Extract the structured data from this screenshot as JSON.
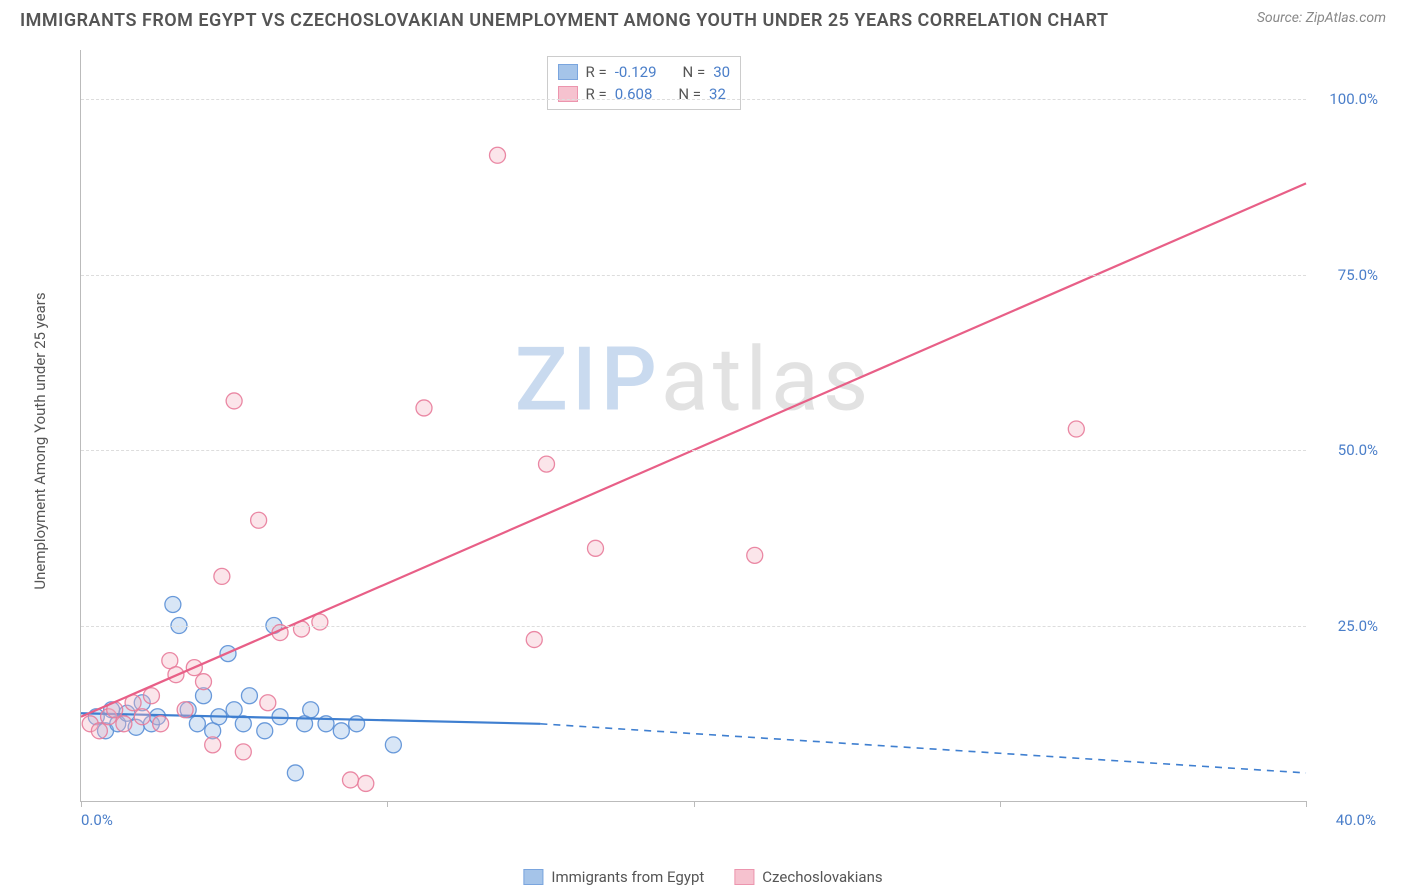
{
  "header": {
    "title": "IMMIGRANTS FROM EGYPT VS CZECHOSLOVAKIAN UNEMPLOYMENT AMONG YOUTH UNDER 25 YEARS CORRELATION CHART",
    "source": "Source: ZipAtlas.com"
  },
  "ylabel": "Unemployment Among Youth under 25 years",
  "watermark": {
    "prefix": "ZIP",
    "suffix": "atlas"
  },
  "chart": {
    "type": "scatter",
    "xlim": [
      0,
      40
    ],
    "ylim": [
      0,
      107
    ],
    "xticks": [
      0,
      10,
      20,
      30,
      40
    ],
    "xtick_labels_shown": {
      "left": "0.0%",
      "right": "40.0%"
    },
    "yticks": [
      25,
      50,
      75,
      100
    ],
    "ytick_labels": [
      "25.0%",
      "50.0%",
      "75.0%",
      "100.0%"
    ],
    "grid_color": "#dddddd",
    "axis_color": "#bbbbbb",
    "background_color": "#ffffff",
    "marker_radius": 8,
    "marker_fill_opacity": 0.35,
    "marker_stroke_opacity": 0.9,
    "line_width": 2.2,
    "series": [
      {
        "id": "egypt",
        "label": "Immigrants from Egypt",
        "color_fill": "#8fb6e4",
        "color_stroke": "#5a8fd6",
        "line_color": "#3f7fd0",
        "R": "-0.129",
        "N": "30",
        "regression": {
          "solid": {
            "x1": 0,
            "y1": 12.5,
            "x2": 15,
            "y2": 11.0
          },
          "dashed": {
            "x1": 15,
            "y1": 11.0,
            "x2": 40,
            "y2": 4.0
          }
        },
        "points": [
          [
            0.5,
            12
          ],
          [
            0.8,
            10
          ],
          [
            1.0,
            13
          ],
          [
            1.2,
            11
          ],
          [
            1.5,
            12.5
          ],
          [
            1.8,
            10.5
          ],
          [
            2.0,
            14
          ],
          [
            2.3,
            11
          ],
          [
            2.5,
            12
          ],
          [
            3.0,
            28
          ],
          [
            3.2,
            25
          ],
          [
            3.5,
            13
          ],
          [
            3.8,
            11
          ],
          [
            4.0,
            15
          ],
          [
            4.3,
            10
          ],
          [
            4.5,
            12
          ],
          [
            4.8,
            21
          ],
          [
            5.0,
            13
          ],
          [
            5.3,
            11
          ],
          [
            5.5,
            15
          ],
          [
            6.0,
            10
          ],
          [
            6.3,
            25
          ],
          [
            6.5,
            12
          ],
          [
            7.0,
            4
          ],
          [
            7.3,
            11
          ],
          [
            7.5,
            13
          ],
          [
            8.0,
            11
          ],
          [
            8.5,
            10
          ],
          [
            9.0,
            11
          ],
          [
            10.2,
            8
          ]
        ]
      },
      {
        "id": "czech",
        "label": "Czechoslovakians",
        "color_fill": "#f4b4c4",
        "color_stroke": "#e87b9a",
        "line_color": "#e85f87",
        "R": "0.608",
        "N": "32",
        "regression": {
          "solid": {
            "x1": 0,
            "y1": 12.0,
            "x2": 40,
            "y2": 88.0
          },
          "dashed": null
        },
        "points": [
          [
            0.3,
            11
          ],
          [
            0.6,
            10
          ],
          [
            0.9,
            12
          ],
          [
            1.1,
            13
          ],
          [
            1.4,
            11
          ],
          [
            1.7,
            14
          ],
          [
            2.0,
            12
          ],
          [
            2.3,
            15
          ],
          [
            2.6,
            11
          ],
          [
            2.9,
            20
          ],
          [
            3.1,
            18
          ],
          [
            3.4,
            13
          ],
          [
            3.7,
            19
          ],
          [
            4.0,
            17
          ],
          [
            4.3,
            8
          ],
          [
            4.6,
            32
          ],
          [
            5.0,
            57
          ],
          [
            5.3,
            7
          ],
          [
            5.8,
            40
          ],
          [
            6.1,
            14
          ],
          [
            6.5,
            24
          ],
          [
            7.2,
            24.5
          ],
          [
            7.8,
            25.5
          ],
          [
            8.8,
            3
          ],
          [
            9.3,
            2.5
          ],
          [
            11.2,
            56
          ],
          [
            13.6,
            92
          ],
          [
            14.8,
            23
          ],
          [
            15.2,
            48
          ],
          [
            16.8,
            36
          ],
          [
            22.0,
            35
          ],
          [
            32.5,
            53
          ]
        ]
      }
    ]
  },
  "legend_top_labels": {
    "R": "R =",
    "N": "N ="
  }
}
